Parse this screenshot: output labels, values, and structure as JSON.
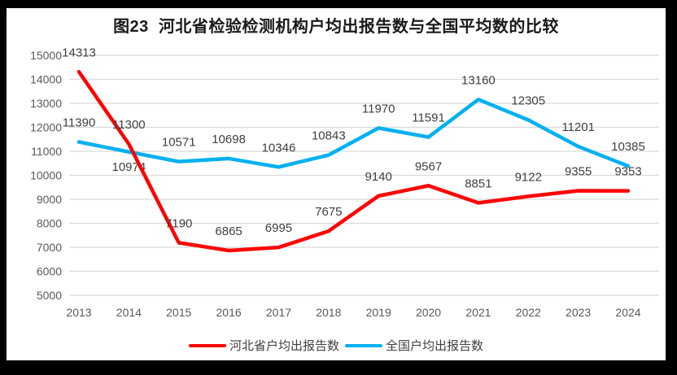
{
  "title": "图23  河北省检验检测机构户均出报告数与全国平均数的比较",
  "colors": {
    "hebei_line": "#FF0000",
    "national_line": "#00B0F0",
    "gridline": "#D9D9D9",
    "axis_text": "#595959",
    "data_label_text": "#3F3F3F",
    "title_text": "#1A1A1A",
    "frame": "#000000",
    "background": "#FFFFFF"
  },
  "legend": {
    "items": [
      {
        "label": "河北省户均出报告数",
        "series_key": "hebei"
      },
      {
        "label": "全国户均出报告数",
        "series_key": "national"
      }
    ]
  },
  "chart_data": {
    "type": "line",
    "title": "图23  河北省检验检测机构户均出报告数与全国平均数的比较",
    "categories": [
      "2013",
      "2014",
      "2015",
      "2016",
      "2017",
      "2018",
      "2019",
      "2020",
      "2021",
      "2022",
      "2023",
      "2024"
    ],
    "series": [
      {
        "key": "hebei",
        "name": "河北省户均出报告数",
        "color": "#FF0000",
        "values": [
          14313,
          11300,
          7190,
          6865,
          6995,
          7675,
          9140,
          9567,
          8851,
          9122,
          9355,
          9353
        ]
      },
      {
        "key": "national",
        "name": "全国户均出报告数",
        "color": "#00B0F0",
        "values": [
          11390,
          10974,
          10571,
          10698,
          10346,
          10843,
          11970,
          11591,
          13160,
          12305,
          11201,
          10385
        ]
      }
    ],
    "xlabel": "",
    "ylabel": "",
    "ylim": [
      5000,
      15000
    ],
    "ytick_step": 1000,
    "grid": true,
    "legend_position": "bottom",
    "label_hints": {
      "below_points": [
        {
          "series_index": 1,
          "point_index": 1
        }
      ]
    },
    "draw_order": [
      1,
      0
    ]
  }
}
